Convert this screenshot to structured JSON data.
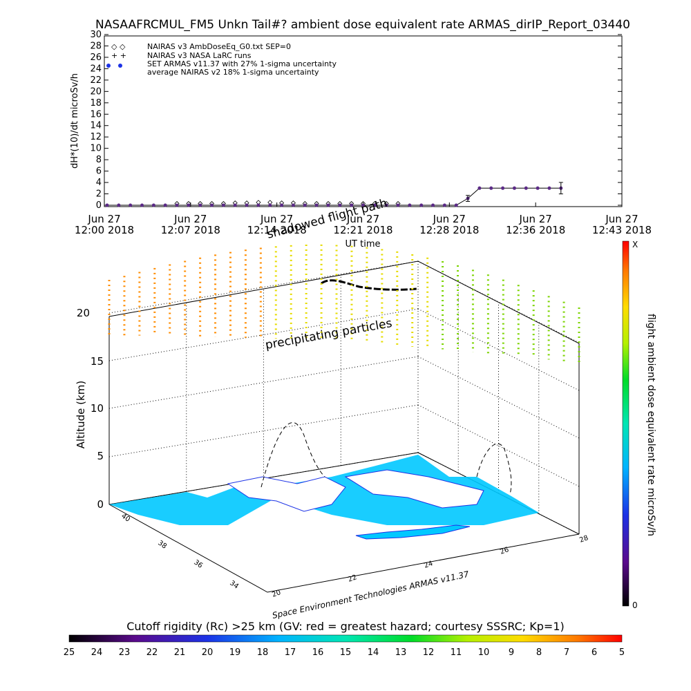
{
  "title": "NASAAFRCMUL_FM5 Unkn Tail#? ambient dose equivalent rate ARMAS_dirIP_Report_03440",
  "chart_data": [
    {
      "type": "line",
      "ylabel": "dH*(10)/dt microSv/h",
      "xlabel": "UT time",
      "ylim": [
        0,
        30
      ],
      "yticks": [
        0,
        2,
        4,
        6,
        8,
        10,
        12,
        14,
        16,
        18,
        20,
        22,
        24,
        26,
        28,
        30
      ],
      "xticks": [
        {
          "day": "Jun 27",
          "time": "12:00 2018"
        },
        {
          "day": "Jun 27",
          "time": "12:07 2018"
        },
        {
          "day": "Jun 27",
          "time": "12:14 2018"
        },
        {
          "day": "Jun 27",
          "time": "12:21 2018"
        },
        {
          "day": "Jun 27",
          "time": "12:28 2018"
        },
        {
          "day": "Jun 27",
          "time": "12:36 2018"
        },
        {
          "day": "Jun 27",
          "time": "12:43 2018"
        }
      ],
      "legend": [
        "NAIRAS v3 AmbDoseEq_G0.txt SEP=0",
        "NAIRAS v3 NASA LaRC runs",
        "SET ARMAS v11.37 with 27% 1-sigma uncertainty",
        "average NAIRAS v2 18% 1-sigma uncertainty"
      ],
      "series": [
        {
          "name": "SET ARMAS v11.37 with 27% 1-sigma uncertainty",
          "color": "#5b2a86",
          "x": [
            0,
            1,
            2,
            3,
            4,
            5,
            6,
            7,
            8,
            9,
            10,
            11,
            12,
            13,
            14,
            15,
            16,
            17,
            18,
            19,
            20,
            21,
            22,
            23,
            24,
            25,
            26,
            27,
            28,
            29,
            30,
            31,
            32,
            33,
            34,
            35,
            36,
            37,
            38,
            39
          ],
          "y": [
            0,
            0,
            0,
            0,
            0,
            0,
            0,
            0,
            0,
            0,
            0,
            0,
            0,
            0,
            0,
            0,
            0,
            0,
            0,
            0,
            0,
            0,
            0,
            0,
            0,
            0,
            0,
            0,
            0,
            0,
            0,
            1.2,
            3.0,
            3.0,
            3.0,
            3.0,
            3.0,
            3.0,
            3.0,
            3.0
          ]
        },
        {
          "name": "NAIRAS v3 AmbDoseEq_G0.txt SEP=0",
          "color": "#000000",
          "x": [
            6,
            7,
            8,
            9,
            10,
            11,
            12,
            13,
            14,
            15,
            16,
            17,
            18,
            19,
            20,
            21,
            22,
            23,
            24,
            25
          ],
          "y": [
            0.3,
            0.3,
            0.3,
            0.3,
            0.3,
            0.4,
            0.4,
            0.5,
            0.5,
            0.4,
            0.4,
            0.3,
            0.3,
            0.3,
            0.3,
            0.3,
            0.3,
            0.3,
            0.3,
            0.3
          ]
        }
      ]
    },
    {
      "type": "scatter",
      "zlabel": "Altitude (km)",
      "zticks": [
        0,
        5,
        10,
        15,
        20
      ],
      "lat_ticks": [
        34,
        36,
        38,
        40
      ],
      "lon_ticks": [
        20,
        22,
        24,
        26,
        28
      ],
      "annotations": [
        "precipitating particles",
        "shadowed flight path",
        "Space Environment Technologies ARMAS v11.37"
      ],
      "colorbar": {
        "label": "flight ambient dose equivalent rate microSv/h",
        "top": "X",
        "bottom": "0"
      }
    },
    {
      "type": "heatmap",
      "colorbar_label": "Cutoff rigidity (Rc) >25 km (GV: red = greatest hazard; courtesy SSSRC; Kp=1)",
      "ticks": [
        25,
        24,
        23,
        22,
        21,
        20,
        19,
        18,
        17,
        16,
        15,
        14,
        13,
        12,
        11,
        10,
        9,
        8,
        7,
        6,
        5
      ]
    }
  ]
}
